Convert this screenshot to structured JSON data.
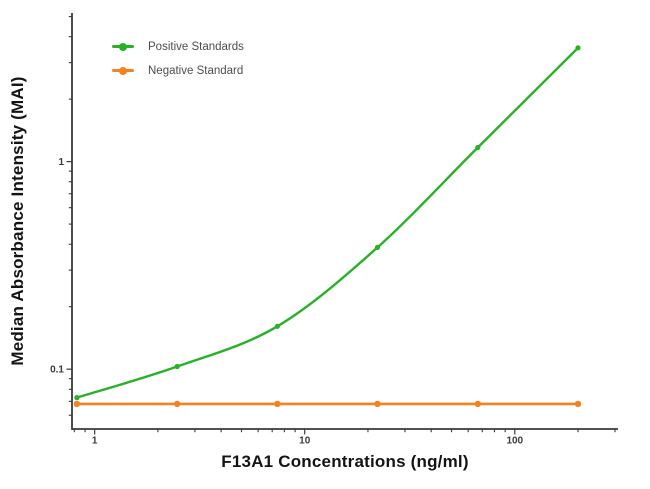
{
  "chart_data": {
    "type": "line",
    "title": "",
    "xlabel": "F13A1 Concentrations (ng/ml)",
    "ylabel": "Median Absorbance Intensity (MAI)",
    "x_scale": "log",
    "y_scale": "log",
    "xlim": [
      0.78,
      310
    ],
    "ylim": [
      0.0515,
      5.2
    ],
    "grid": false,
    "legend_position": "top-left",
    "x_ticks": [
      {
        "v": 1,
        "label": "1"
      },
      {
        "v": 10,
        "label": "10"
      },
      {
        "v": 100,
        "label": "100"
      }
    ],
    "y_ticks": [
      {
        "v": 0.1,
        "label": "0.1"
      },
      {
        "v": 1,
        "label": "1"
      }
    ],
    "x_minor_ticks": [
      0.8,
      0.9,
      2,
      3,
      4,
      5,
      6,
      7,
      8,
      9,
      20,
      30,
      40,
      50,
      60,
      70,
      80,
      90,
      200,
      300
    ],
    "y_minor_ticks": [
      0.06,
      0.07,
      0.08,
      0.09,
      0.2,
      0.3,
      0.4,
      0.5,
      0.6,
      0.7,
      0.8,
      0.9,
      2,
      3,
      4,
      5
    ],
    "axis_color": "#3a3a3a",
    "tick_label_color": "#3a3a3a",
    "series": [
      {
        "name": "Positive Standards",
        "color": "#27b127",
        "smooth": true,
        "marker_radius": 2.6,
        "line_width": 2.4,
        "x": [
          0.823,
          2.47,
          7.41,
          22.2,
          66.7,
          200
        ],
        "y": [
          0.073,
          0.103,
          0.161,
          0.386,
          1.17,
          3.53
        ]
      },
      {
        "name": "Negative Standard",
        "color": "#f58220",
        "smooth": false,
        "marker_radius": 3.2,
        "line_width": 2.6,
        "x": [
          0.823,
          2.47,
          7.41,
          22.2,
          66.7,
          200
        ],
        "y": [
          0.068,
          0.068,
          0.068,
          0.068,
          0.068,
          0.068
        ]
      }
    ]
  }
}
